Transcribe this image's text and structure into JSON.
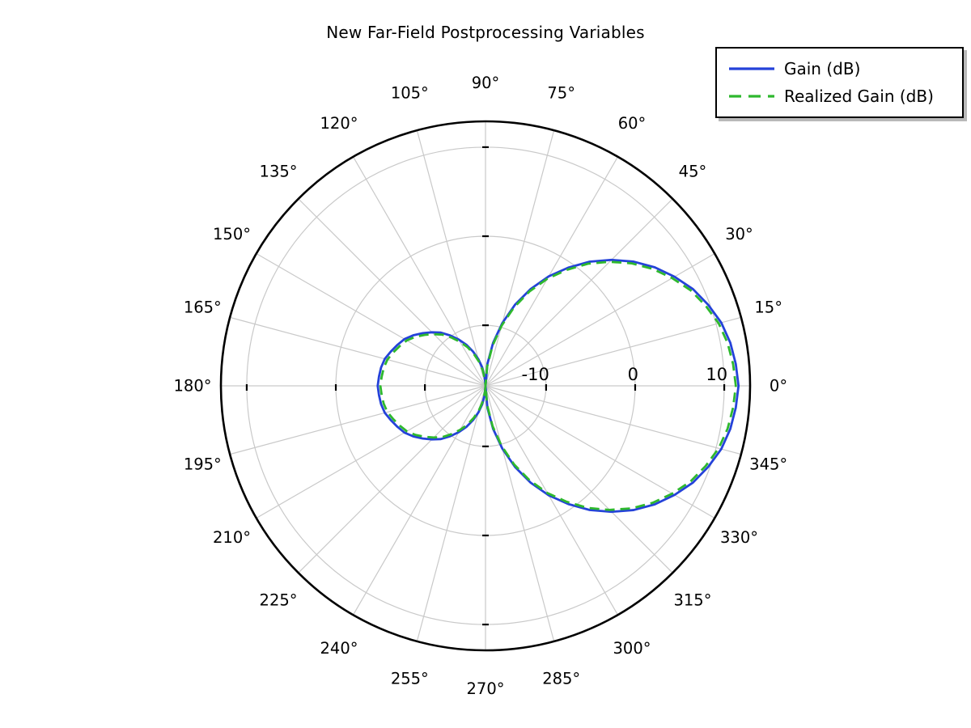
{
  "chart_data": {
    "type": "line",
    "subtype": "polar",
    "title": "New Far-Field Postprocessing Variables",
    "angle_unit": "degrees",
    "angle_axis": {
      "tick_step_deg": 15,
      "direction": "counterclockwise",
      "zero_position": "right",
      "labels": [
        "0°",
        "15°",
        "30°",
        "45°",
        "60°",
        "75°",
        "90°",
        "105°",
        "120°",
        "135°",
        "150°",
        "165°",
        "180°",
        "195°",
        "210°",
        "225°",
        "240°",
        "255°",
        "270°",
        "285°",
        "300°",
        "315°",
        "330°",
        "345°"
      ]
    },
    "radial_axis": {
      "unit": "dB",
      "min": -16.8,
      "max": 12.9,
      "tick_values": [
        -10,
        0,
        10
      ],
      "tick_labels": [
        "-10",
        "0",
        "10"
      ]
    },
    "grid": true,
    "legend_position": "top-right",
    "angles_deg": [
      0,
      5,
      10,
      15,
      20,
      25,
      30,
      35,
      40,
      45,
      50,
      55,
      60,
      65,
      70,
      75,
      80,
      85,
      90,
      95,
      100,
      105,
      110,
      115,
      120,
      125,
      130,
      135,
      140,
      145,
      150,
      155,
      160,
      165,
      170,
      175,
      180,
      185,
      190,
      195,
      200,
      205,
      210,
      215,
      220,
      225,
      230,
      235,
      240,
      245,
      250,
      255,
      260,
      265,
      270,
      275,
      280,
      285,
      290,
      295,
      300,
      305,
      310,
      315,
      320,
      325,
      330,
      335,
      340,
      345,
      350,
      355
    ],
    "series": [
      {
        "name": "Gain (dB)",
        "color": "#2442d9",
        "line_style": "solid",
        "values": [
          11.6,
          11.4,
          11.1,
          10.6,
          9.8,
          8.9,
          7.7,
          6.4,
          4.9,
          3.2,
          1.4,
          -0.6,
          -2.6,
          -4.8,
          -7.1,
          -9.5,
          -11.9,
          -14.3,
          -16.8,
          -15.8,
          -14.7,
          -13.7,
          -12.7,
          -11.7,
          -10.8,
          -9.9,
          -9.0,
          -8.3,
          -7.6,
          -6.9,
          -6.3,
          -5.9,
          -5.5,
          -5.1,
          -4.9,
          -4.8,
          -4.7,
          -4.8,
          -4.9,
          -5.1,
          -5.5,
          -5.9,
          -6.3,
          -6.9,
          -7.6,
          -8.3,
          -9.0,
          -9.9,
          -10.8,
          -11.7,
          -12.7,
          -13.7,
          -14.7,
          -15.8,
          -16.8,
          -14.3,
          -11.9,
          -9.5,
          -7.1,
          -4.8,
          -2.6,
          -0.6,
          1.4,
          3.2,
          4.9,
          6.4,
          7.7,
          8.9,
          9.8,
          10.6,
          11.1,
          11.4
        ]
      },
      {
        "name": "Realized Gain (dB)",
        "color": "#2eb82e",
        "line_style": "dashed",
        "values": [
          11.3,
          11.1,
          10.8,
          10.3,
          9.5,
          8.6,
          7.4,
          6.1,
          4.6,
          2.9,
          1.1,
          -0.9,
          -2.9,
          -5.1,
          -7.4,
          -9.8,
          -12.2,
          -14.6,
          -17.1,
          -16.1,
          -15.0,
          -14.0,
          -13.0,
          -12.0,
          -11.1,
          -10.2,
          -9.3,
          -8.6,
          -7.9,
          -7.2,
          -6.6,
          -6.2,
          -5.8,
          -5.4,
          -5.2,
          -5.1,
          -5.0,
          -5.1,
          -5.2,
          -5.4,
          -5.8,
          -6.2,
          -6.6,
          -7.2,
          -7.9,
          -8.6,
          -9.3,
          -10.2,
          -11.1,
          -12.0,
          -13.0,
          -14.0,
          -15.0,
          -16.1,
          -17.1,
          -14.6,
          -12.2,
          -9.8,
          -7.4,
          -5.1,
          -2.9,
          -0.9,
          1.1,
          2.9,
          4.6,
          6.1,
          7.4,
          8.6,
          9.5,
          10.3,
          10.8,
          11.1
        ]
      }
    ]
  },
  "legend": {
    "items": [
      {
        "label": "Gain (dB)",
        "color": "#2442d9",
        "style": "solid"
      },
      {
        "label": "Realized Gain (dB)",
        "color": "#2eb82e",
        "style": "dashed"
      }
    ]
  },
  "colors": {
    "background": "#ffffff",
    "outer_circle": "#000000",
    "grid": "#c9c9c9",
    "tick": "#000000",
    "text": "#000000",
    "legend_shadow": "#b9b9b9"
  }
}
